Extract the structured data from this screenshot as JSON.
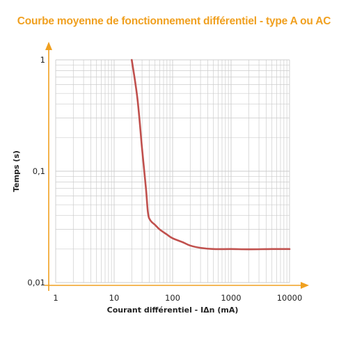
{
  "chart_data": {
    "type": "line",
    "title": "Courbe moyenne de fonctionnement différentiel - type A ou AC",
    "xlabel": "Courant différentiel - IΔn (mA)",
    "ylabel": "Temps (s)",
    "x_scale": "log",
    "y_scale": "log",
    "xlim": [
      1,
      10000
    ],
    "ylim": [
      0.01,
      1
    ],
    "x_ticks": [
      1,
      10,
      100,
      1000,
      10000
    ],
    "x_tick_labels": [
      "1",
      "10",
      "100",
      "1000",
      "10000"
    ],
    "y_ticks": [
      0.01,
      0.1,
      1
    ],
    "y_tick_labels": [
      "0,01",
      "0,1",
      "1"
    ],
    "grid": true,
    "series": [
      {
        "x": [
          20,
          25,
          30,
          35,
          38,
          42,
          50,
          60,
          80,
          100,
          150,
          200,
          300,
          500,
          1000,
          2000,
          5000,
          10000
        ],
        "y": [
          1,
          0.45,
          0.16,
          0.07,
          0.042,
          0.036,
          0.033,
          0.03,
          0.027,
          0.025,
          0.023,
          0.0215,
          0.0205,
          0.02,
          0.02,
          0.0199,
          0.02,
          0.02
        ]
      }
    ],
    "colors": {
      "line": "#c0504d",
      "axis": "#f0a020",
      "grid": "#cccccc",
      "title": "#f0a020"
    }
  }
}
